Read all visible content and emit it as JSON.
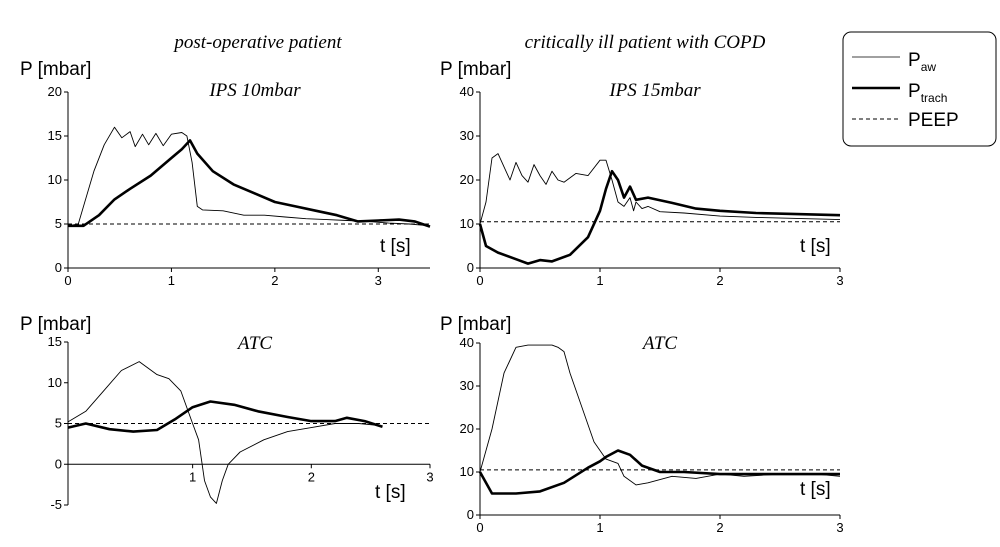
{
  "column_titles": [
    "post-operative patient",
    "critically ill patient with COPD"
  ],
  "legend": {
    "entries": [
      {
        "name": "P",
        "sub": "aw",
        "style": "thin"
      },
      {
        "name": "P",
        "sub": "trach",
        "style": "thick"
      },
      {
        "name": "PEEP",
        "sub": "",
        "style": "dashed"
      }
    ]
  },
  "chart_data": [
    {
      "type": "line",
      "panel_label": "IPS 10mbar",
      "ylabel": "P [mbar]",
      "xlabel": "t [s]",
      "xlim": [
        0,
        3.5
      ],
      "ylim": [
        0,
        20
      ],
      "xticks": [
        0,
        1,
        2,
        3
      ],
      "yticks": [
        0,
        5,
        10,
        15,
        20
      ],
      "peep": 5,
      "series": [
        {
          "name": "Paw",
          "points": [
            [
              0,
              4.8
            ],
            [
              0.1,
              5
            ],
            [
              0.15,
              7
            ],
            [
              0.25,
              11
            ],
            [
              0.35,
              14
            ],
            [
              0.45,
              16
            ],
            [
              0.52,
              14.8
            ],
            [
              0.6,
              15.5
            ],
            [
              0.65,
              13.8
            ],
            [
              0.72,
              15.2
            ],
            [
              0.78,
              14
            ],
            [
              0.85,
              15.3
            ],
            [
              0.92,
              13.9
            ],
            [
              1.0,
              15.2
            ],
            [
              1.1,
              15.4
            ],
            [
              1.15,
              15
            ],
            [
              1.2,
              12
            ],
            [
              1.25,
              7
            ],
            [
              1.3,
              6.6
            ],
            [
              1.5,
              6.5
            ],
            [
              1.7,
              6
            ],
            [
              1.9,
              6
            ],
            [
              2.1,
              5.8
            ],
            [
              2.3,
              5.6
            ],
            [
              2.5,
              5.5
            ],
            [
              2.7,
              5.4
            ],
            [
              2.9,
              5.3
            ],
            [
              3.1,
              5.1
            ],
            [
              3.3,
              5
            ],
            [
              3.5,
              4.8
            ]
          ]
        },
        {
          "name": "Ptrach",
          "points": [
            [
              0,
              4.8
            ],
            [
              0.15,
              4.8
            ],
            [
              0.3,
              6
            ],
            [
              0.45,
              7.8
            ],
            [
              0.6,
              9
            ],
            [
              0.8,
              10.5
            ],
            [
              1.0,
              12.5
            ],
            [
              1.1,
              13.5
            ],
            [
              1.18,
              14.5
            ],
            [
              1.25,
              13
            ],
            [
              1.4,
              11
            ],
            [
              1.6,
              9.5
            ],
            [
              1.8,
              8.5
            ],
            [
              2.0,
              7.5
            ],
            [
              2.2,
              7
            ],
            [
              2.4,
              6.5
            ],
            [
              2.6,
              6
            ],
            [
              2.8,
              5.3
            ],
            [
              3.0,
              5.4
            ],
            [
              3.2,
              5.5
            ],
            [
              3.35,
              5.3
            ],
            [
              3.5,
              4.7
            ]
          ]
        }
      ]
    },
    {
      "type": "line",
      "panel_label": "IPS 15mbar",
      "ylabel": "P [mbar]",
      "xlabel": "t [s]",
      "xlim": [
        0,
        3
      ],
      "ylim": [
        0,
        40
      ],
      "xticks": [
        0,
        1,
        2,
        3
      ],
      "yticks": [
        0,
        10,
        20,
        30,
        40
      ],
      "peep": 10.5,
      "series": [
        {
          "name": "Paw",
          "points": [
            [
              0,
              10
            ],
            [
              0.05,
              15
            ],
            [
              0.1,
              25
            ],
            [
              0.15,
              26
            ],
            [
              0.2,
              23
            ],
            [
              0.25,
              20
            ],
            [
              0.3,
              24
            ],
            [
              0.35,
              21
            ],
            [
              0.4,
              19.5
            ],
            [
              0.45,
              23.5
            ],
            [
              0.5,
              21
            ],
            [
              0.55,
              19
            ],
            [
              0.6,
              22
            ],
            [
              0.65,
              20
            ],
            [
              0.7,
              19.5
            ],
            [
              0.8,
              21.5
            ],
            [
              0.9,
              21
            ],
            [
              1.0,
              24.5
            ],
            [
              1.05,
              24.5
            ],
            [
              1.1,
              20
            ],
            [
              1.15,
              15
            ],
            [
              1.2,
              14
            ],
            [
              1.25,
              16
            ],
            [
              1.28,
              13
            ],
            [
              1.3,
              15
            ],
            [
              1.35,
              13.5
            ],
            [
              1.4,
              14
            ],
            [
              1.5,
              12.8
            ],
            [
              1.7,
              12.5
            ],
            [
              2.0,
              11.8
            ],
            [
              2.3,
              11.5
            ],
            [
              2.6,
              11.3
            ],
            [
              3.0,
              11
            ]
          ]
        },
        {
          "name": "Ptrach",
          "points": [
            [
              0,
              10
            ],
            [
              0.05,
              5
            ],
            [
              0.15,
              3.5
            ],
            [
              0.3,
              2
            ],
            [
              0.4,
              1
            ],
            [
              0.5,
              1.8
            ],
            [
              0.6,
              1.5
            ],
            [
              0.75,
              3
            ],
            [
              0.9,
              7
            ],
            [
              1.0,
              13
            ],
            [
              1.05,
              18
            ],
            [
              1.1,
              22
            ],
            [
              1.15,
              20
            ],
            [
              1.2,
              16
            ],
            [
              1.25,
              18.5
            ],
            [
              1.3,
              15.5
            ],
            [
              1.4,
              16
            ],
            [
              1.6,
              14.8
            ],
            [
              1.8,
              13.5
            ],
            [
              2.0,
              13
            ],
            [
              2.3,
              12.5
            ],
            [
              2.6,
              12.3
            ],
            [
              3.0,
              12
            ]
          ]
        }
      ]
    },
    {
      "type": "line",
      "panel_label": "ATC",
      "ylabel": "P [mbar]",
      "xlabel": "t [s]",
      "xlim": [
        -0.05,
        3
      ],
      "ylim": [
        -5,
        15
      ],
      "xticks": [
        1,
        2,
        3
      ],
      "yticks": [
        -5,
        0,
        5,
        10,
        15
      ],
      "peep": 5,
      "series": [
        {
          "name": "Paw",
          "points": [
            [
              -0.05,
              5.2
            ],
            [
              0.1,
              6.5
            ],
            [
              0.25,
              9
            ],
            [
              0.4,
              11.5
            ],
            [
              0.55,
              12.6
            ],
            [
              0.7,
              11
            ],
            [
              0.8,
              10.5
            ],
            [
              0.9,
              9
            ],
            [
              1.0,
              5
            ],
            [
              1.05,
              3
            ],
            [
              1.1,
              -2
            ],
            [
              1.15,
              -4
            ],
            [
              1.2,
              -4.8
            ],
            [
              1.25,
              -2
            ],
            [
              1.3,
              0
            ],
            [
              1.4,
              1.5
            ],
            [
              1.6,
              3
            ],
            [
              1.8,
              4
            ],
            [
              2.0,
              4.5
            ],
            [
              2.2,
              5
            ],
            [
              2.4,
              5
            ],
            [
              2.6,
              4.7
            ]
          ]
        },
        {
          "name": "Ptrach",
          "points": [
            [
              -0.05,
              4.5
            ],
            [
              0.1,
              5
            ],
            [
              0.3,
              4.3
            ],
            [
              0.5,
              4
            ],
            [
              0.7,
              4.2
            ],
            [
              0.85,
              5.5
            ],
            [
              1.0,
              7
            ],
            [
              1.15,
              7.7
            ],
            [
              1.35,
              7.3
            ],
            [
              1.55,
              6.5
            ],
            [
              1.8,
              5.8
            ],
            [
              2.0,
              5.3
            ],
            [
              2.2,
              5.3
            ],
            [
              2.3,
              5.7
            ],
            [
              2.45,
              5.3
            ],
            [
              2.6,
              4.6
            ]
          ]
        }
      ]
    },
    {
      "type": "line",
      "panel_label": "ATC",
      "ylabel": "P [mbar]",
      "xlabel": "t [s]",
      "xlim": [
        0,
        3
      ],
      "ylim": [
        0,
        40
      ],
      "xticks": [
        0,
        1,
        2,
        3
      ],
      "yticks": [
        0,
        10,
        20,
        30,
        40
      ],
      "peep": 10.5,
      "series": [
        {
          "name": "Paw",
          "points": [
            [
              0,
              10
            ],
            [
              0.1,
              20
            ],
            [
              0.2,
              33
            ],
            [
              0.3,
              39
            ],
            [
              0.4,
              39.5
            ],
            [
              0.5,
              39.5
            ],
            [
              0.6,
              39.5
            ],
            [
              0.65,
              39
            ],
            [
              0.7,
              38
            ],
            [
              0.75,
              33
            ],
            [
              0.85,
              25
            ],
            [
              0.95,
              17
            ],
            [
              1.05,
              13
            ],
            [
              1.15,
              12
            ],
            [
              1.2,
              9
            ],
            [
              1.3,
              7
            ],
            [
              1.4,
              7.5
            ],
            [
              1.6,
              9
            ],
            [
              1.8,
              8.5
            ],
            [
              2.0,
              9.5
            ],
            [
              2.2,
              9
            ],
            [
              2.5,
              9.5
            ],
            [
              2.8,
              9.5
            ],
            [
              3.0,
              9
            ]
          ]
        },
        {
          "name": "Ptrach",
          "points": [
            [
              0,
              10
            ],
            [
              0.1,
              5
            ],
            [
              0.3,
              5
            ],
            [
              0.5,
              5.5
            ],
            [
              0.7,
              7.5
            ],
            [
              0.9,
              11
            ],
            [
              1.0,
              12.5
            ],
            [
              1.05,
              13.5
            ],
            [
              1.15,
              15
            ],
            [
              1.25,
              14
            ],
            [
              1.35,
              11.5
            ],
            [
              1.5,
              10
            ],
            [
              1.7,
              10
            ],
            [
              2.0,
              9.5
            ],
            [
              2.5,
              9.5
            ],
            [
              3.0,
              9.5
            ]
          ]
        }
      ]
    }
  ]
}
